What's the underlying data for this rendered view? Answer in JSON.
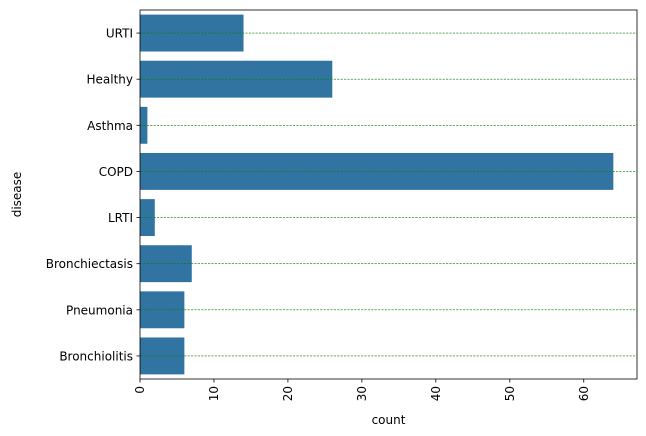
{
  "chart_data": {
    "type": "bar",
    "orientation": "horizontal",
    "categories": [
      "URTI",
      "Healthy",
      "Asthma",
      "COPD",
      "LRTI",
      "Bronchiectasis",
      "Pneumonia",
      "Bronchiolitis"
    ],
    "values": [
      14,
      26,
      1,
      64,
      2,
      7,
      6,
      6
    ],
    "xlabel": "count",
    "ylabel": "disease",
    "xlim": [
      0,
      67.2
    ],
    "xticks": [
      0,
      10,
      20,
      30,
      40,
      50,
      60
    ],
    "bar_color": "#3274a1",
    "grid": true,
    "grid_axis": "y",
    "grid_color": "#008000",
    "grid_style": "dashed"
  }
}
